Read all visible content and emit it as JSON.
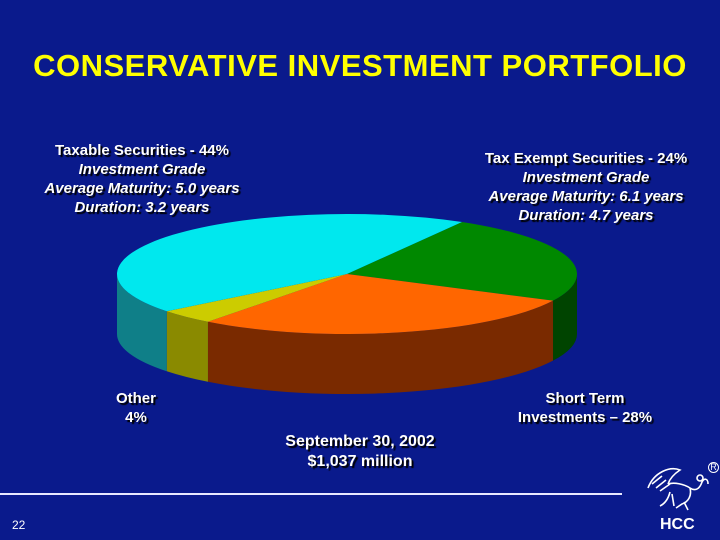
{
  "slide": {
    "title": "CONSERVATIVE INVESTMENT PORTFOLIO",
    "slide_number": "22",
    "brand": "HCC",
    "registered_mark": "R"
  },
  "labels": {
    "taxable": [
      "Taxable Securities - 44%",
      "Investment Grade",
      "Average Maturity: 5.0 years",
      "Duration: 3.2 years"
    ],
    "tax_exempt": [
      "Tax Exempt Securities - 24%",
      "Investment Grade",
      "Average Maturity: 6.1 years",
      "Duration: 4.7 years"
    ],
    "other": [
      "Other",
      "4%"
    ],
    "short_term": [
      "Short Term",
      "Investments – 28%"
    ],
    "caption": [
      "September 30, 2002",
      "$1,037 million"
    ]
  },
  "chart_data": {
    "type": "pie",
    "style": "3d",
    "categories": [
      "Taxable Securities",
      "Tax Exempt Securities",
      "Short Term Investments",
      "Other"
    ],
    "values": [
      44,
      24,
      28,
      4
    ],
    "colors": [
      "#00e8ee",
      "#008800",
      "#ff6600",
      "#cccc00"
    ],
    "side_colors": [
      "#0f7f88",
      "#004400",
      "#7a2a00",
      "#8a8a00"
    ]
  }
}
